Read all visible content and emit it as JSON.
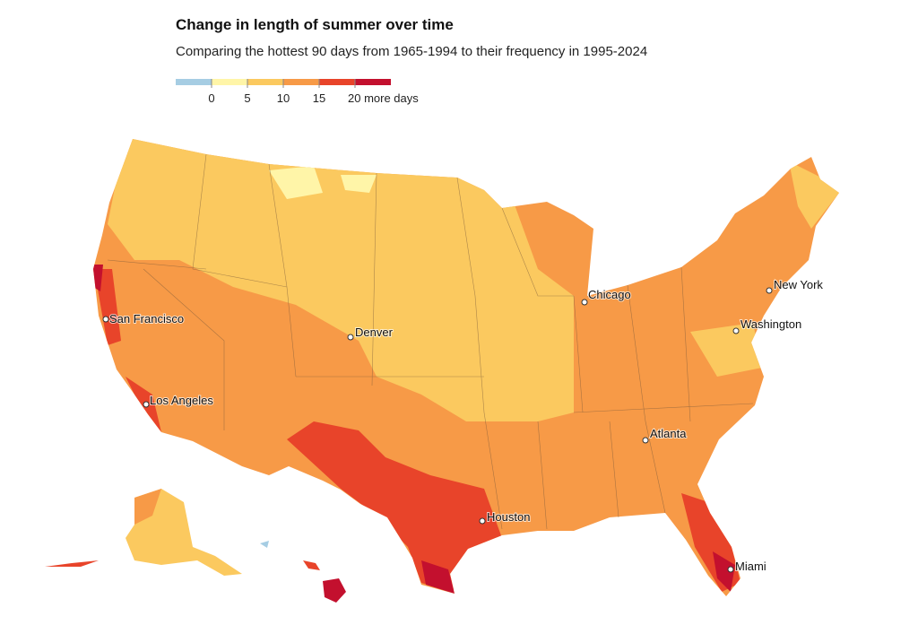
{
  "header": {
    "title": "Change in length of summer over time",
    "subtitle": "Comparing the hottest 90 days from 1965-1994 to their frequency in 1995-2024"
  },
  "legend": {
    "colors": [
      "#a6cde3",
      "#fff5a8",
      "#fbc95f",
      "#f79a47",
      "#e8442a",
      "#c3102e"
    ],
    "ticks": [
      0,
      5,
      10,
      15,
      {
        "value": 20,
        "label": "20 more days"
      }
    ]
  },
  "cities": [
    "San Francisco",
    "Los Angeles",
    "Denver",
    "Chicago",
    "New York",
    "Washington",
    "Atlanta",
    "Houston",
    "Miami"
  ]
}
